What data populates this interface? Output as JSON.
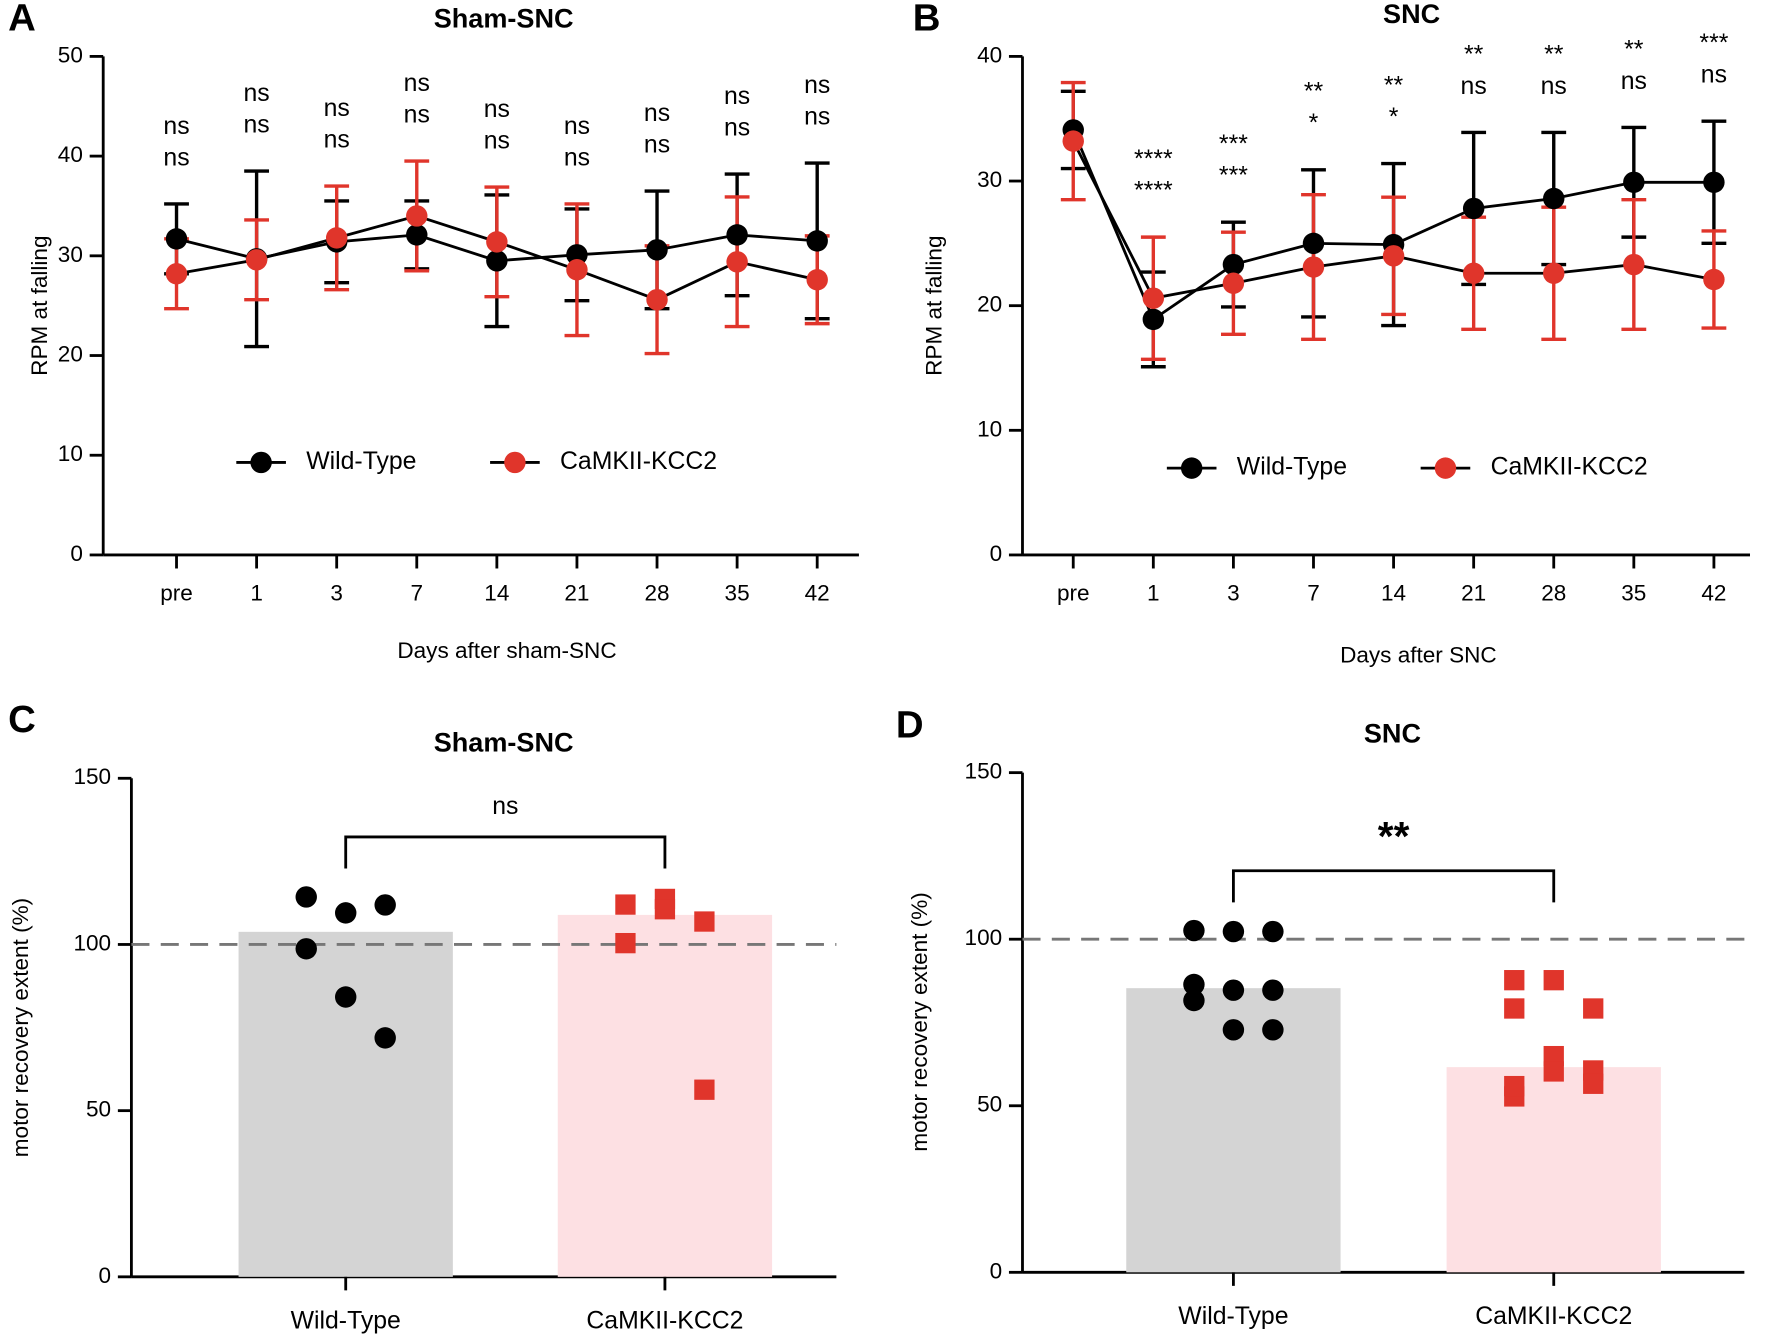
{
  "chart_data": [
    {
      "type": "line",
      "panel_label": "A",
      "title": "Sham-SNC",
      "xlabel": "Days after sham-SNC",
      "ylabel": "RPM at falling",
      "categories": [
        "pre",
        "1",
        "3",
        "7",
        "14",
        "21",
        "28",
        "35",
        "42"
      ],
      "ylim": [
        0,
        50
      ],
      "yticks": [
        0,
        10,
        20,
        30,
        40,
        50
      ],
      "series": [
        {
          "name": "Wild-Type",
          "color": "#000000",
          "values": [
            31.7,
            29.7,
            31.4,
            32.1,
            29.5,
            30.1,
            30.6,
            32.1,
            31.5
          ],
          "errors": [
            3.5,
            8.8,
            4.1,
            3.4,
            6.6,
            4.6,
            5.9,
            6.1,
            7.8
          ],
          "significance": [
            "ns",
            "ns",
            "ns",
            "ns",
            "ns",
            "ns",
            "ns",
            "ns",
            "ns"
          ]
        },
        {
          "name": "CaMKII-KCC2",
          "color": "#e0352b",
          "values": [
            28.2,
            29.6,
            31.8,
            34.0,
            31.4,
            28.6,
            25.6,
            29.4,
            27.6
          ],
          "errors": [
            3.5,
            4.0,
            5.2,
            5.5,
            5.5,
            6.6,
            5.4,
            6.5,
            4.4
          ],
          "significance": [
            "ns",
            "ns",
            "ns",
            "ns",
            "ns",
            "ns",
            "ns",
            "ns",
            "ns"
          ]
        }
      ]
    },
    {
      "type": "line",
      "panel_label": "B",
      "title": "SNC",
      "xlabel": "Days after SNC",
      "ylabel": "RPM at falling",
      "categories": [
        "pre",
        "1",
        "3",
        "7",
        "14",
        "21",
        "28",
        "35",
        "42"
      ],
      "ylim": [
        0,
        40
      ],
      "yticks": [
        0,
        10,
        20,
        30,
        40
      ],
      "series": [
        {
          "name": "Wild-Type",
          "color": "#000000",
          "values": [
            34.1,
            18.9,
            23.3,
            25.0,
            24.9,
            27.8,
            28.6,
            29.9,
            29.9
          ],
          "errors": [
            3.1,
            3.8,
            3.4,
            5.9,
            6.5,
            6.1,
            5.3,
            4.4,
            4.9
          ],
          "significance": [
            null,
            "****",
            "***",
            "*",
            "*",
            "ns",
            "ns",
            "ns",
            "ns"
          ]
        },
        {
          "name": "CaMKII-KCC2",
          "color": "#e0352b",
          "values": [
            33.2,
            20.6,
            21.8,
            23.1,
            24.0,
            22.6,
            22.6,
            23.3,
            22.1
          ],
          "errors": [
            4.7,
            4.9,
            4.1,
            5.8,
            4.7,
            4.5,
            5.3,
            5.2,
            3.9
          ],
          "significance": [
            null,
            "****",
            "***",
            "**",
            "**",
            "**",
            "**",
            "**",
            "***"
          ]
        }
      ]
    },
    {
      "type": "bar",
      "panel_label": "C",
      "title": "Sham-SNC",
      "ylabel": "motor recovery extent (%)",
      "categories": [
        "Wild-Type",
        "CaMKII-KCC2"
      ],
      "ylim": [
        0,
        150
      ],
      "yticks": [
        0,
        50,
        100,
        150
      ],
      "reference_line": 100,
      "significance": "ns",
      "values": [
        103.8,
        108.9
      ],
      "colors": [
        "#d4d4d4",
        "#fde0e3"
      ],
      "points": [
        {
          "color": "#000000",
          "marker": "circle",
          "values": [
            114.3,
            109.5,
            111.9,
            98.7,
            84.2,
            71.9
          ]
        },
        {
          "color": "#e0352b",
          "marker": "square",
          "values": [
            112.0,
            113.7,
            106.9,
            100.4,
            110.6,
            56.3
          ]
        }
      ]
    },
    {
      "type": "bar",
      "panel_label": "D",
      "title": "SNC",
      "ylabel": "motor recovery extent (%)",
      "categories": [
        "Wild-Type",
        "CaMKII-KCC2"
      ],
      "ylim": [
        0,
        150
      ],
      "yticks": [
        0,
        50,
        100,
        150
      ],
      "reference_line": 100,
      "significance": "**",
      "values": [
        85.3,
        61.6
      ],
      "colors": [
        "#d4d4d4",
        "#fde0e3"
      ],
      "points": [
        {
          "color": "#000000",
          "marker": "circle",
          "values": [
            102.6,
            102.3,
            102.3,
            86.4,
            84.7,
            84.7,
            81.6,
            72.8,
            72.8
          ]
        },
        {
          "color": "#e0352b",
          "marker": "square",
          "values": [
            87.7,
            87.7,
            79.2,
            79.2,
            64.9,
            60.6,
            52.8,
            60.3,
            56.6,
            55.9
          ]
        }
      ]
    }
  ]
}
